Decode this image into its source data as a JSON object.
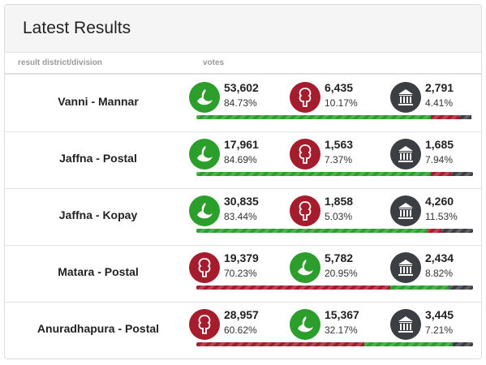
{
  "header": {
    "title": "Latest Results"
  },
  "columns": [
    "result district/division",
    "votes"
  ],
  "rows": [
    {
      "district": "Vanni - Mannar",
      "results": [
        {
          "votes": "53,602",
          "share": 84.73,
          "share_label": "84.73%",
          "color": "#2c9e2c"
        },
        {
          "votes": "6,435",
          "share": 10.17,
          "share_label": "10.17%",
          "color": "#a51c2c"
        },
        {
          "votes": "2,791",
          "share": 4.41,
          "share_label": "4.41%",
          "color": "#3b3e43"
        }
      ]
    },
    {
      "district": "Jaffna - Postal",
      "results": [
        {
          "votes": "17,961",
          "share": 84.69,
          "share_label": "84.69%",
          "color": "#2c9e2c"
        },
        {
          "votes": "1,563",
          "share": 7.37,
          "share_label": "7.37%",
          "color": "#a51c2c"
        },
        {
          "votes": "1,685",
          "share": 7.94,
          "share_label": "7.94%",
          "color": "#3b3e43"
        }
      ]
    },
    {
      "district": "Jaffna - Kopay",
      "results": [
        {
          "votes": "30,835",
          "share": 83.44,
          "share_label": "83.44%",
          "color": "#2c9e2c"
        },
        {
          "votes": "1,858",
          "share": 5.03,
          "share_label": "5.03%",
          "color": "#a51c2c"
        },
        {
          "votes": "4,260",
          "share": 11.53,
          "share_label": "11.53%",
          "color": "#3b3e43"
        }
      ]
    },
    {
      "district": "Matara - Postal",
      "results": [
        {
          "votes": "19,379",
          "share": 70.23,
          "share_label": "70.23%",
          "color": "#a51c2c"
        },
        {
          "votes": "5,782",
          "share": 20.95,
          "share_label": "20.95%",
          "color": "#2c9e2c"
        },
        {
          "votes": "2,434",
          "share": 8.82,
          "share_label": "8.82%",
          "color": "#3b3e43"
        }
      ]
    },
    {
      "district": "Anuradhapura - Postal",
      "results": [
        {
          "votes": "28,957",
          "share": 60.62,
          "share_label": "60.62%",
          "color": "#a51c2c"
        },
        {
          "votes": "15,367",
          "share": 32.17,
          "share_label": "32.17%",
          "color": "#2c9e2c"
        },
        {
          "votes": "3,445",
          "share": 7.21,
          "share_label": "7.21%",
          "color": "#3b3e43"
        }
      ]
    }
  ]
}
